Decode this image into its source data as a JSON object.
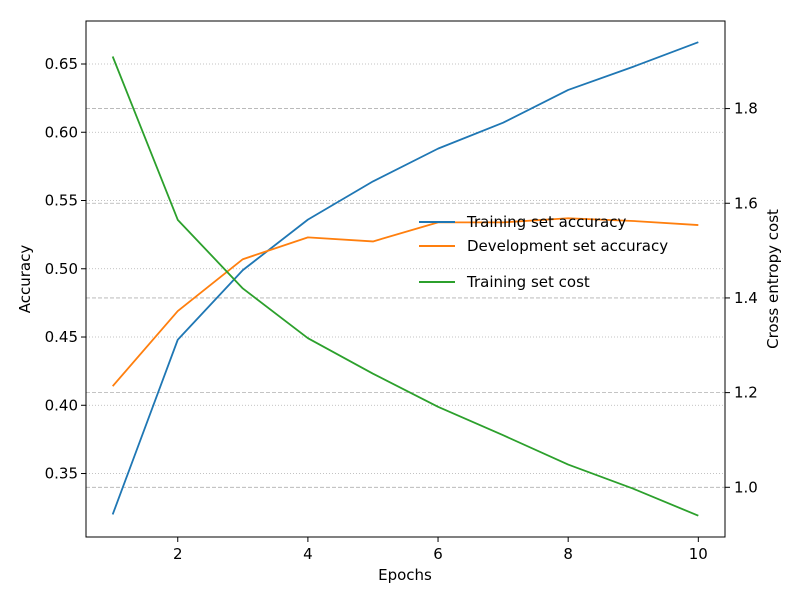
{
  "chart_data": {
    "type": "line",
    "title": "",
    "xlabel": "Epochs",
    "ylabel_left": "Accuracy",
    "ylabel_right": "Cross entropy cost",
    "xlim": [
      0.59,
      10.41
    ],
    "ylim_left": [
      0.3035,
      0.6815
    ],
    "ylim_right": [
      0.895,
      1.985
    ],
    "x_ticks": [
      2,
      4,
      6,
      8,
      10
    ],
    "y_ticks_left": [
      0.35,
      0.4,
      0.45,
      0.5,
      0.55,
      0.6,
      0.65
    ],
    "y_ticks_right": [
      1.0,
      1.2,
      1.4,
      1.6,
      1.8
    ],
    "x_tick_labels": [
      "2",
      "4",
      "6",
      "8",
      "10"
    ],
    "y_tick_labels_left": [
      "0.35",
      "0.40",
      "0.45",
      "0.50",
      "0.55",
      "0.60",
      "0.65"
    ],
    "y_tick_labels_right": [
      "1.0",
      "1.2",
      "1.4",
      "1.6",
      "1.8"
    ],
    "grid": true,
    "legend_position": "center-right",
    "x": [
      1,
      2,
      3,
      4,
      5,
      6,
      7,
      8,
      9,
      10
    ],
    "series": [
      {
        "name": "Training set accuracy",
        "axis": "left",
        "color": "#1f77b4",
        "values": [
          0.32,
          0.448,
          0.499,
          0.536,
          0.564,
          0.588,
          0.607,
          0.631,
          0.648,
          0.666
        ]
      },
      {
        "name": "Development set accuracy",
        "axis": "left",
        "color": "#ff7f0e",
        "values": [
          0.414,
          0.469,
          0.507,
          0.523,
          0.52,
          0.534,
          0.534,
          0.537,
          0.535,
          0.532
        ]
      },
      {
        "name": "Training set cost",
        "axis": "right",
        "color": "#2ca02c",
        "values": [
          1.91,
          1.565,
          1.42,
          1.315,
          1.24,
          1.17,
          1.11,
          1.048,
          0.997,
          0.94
        ]
      }
    ]
  }
}
